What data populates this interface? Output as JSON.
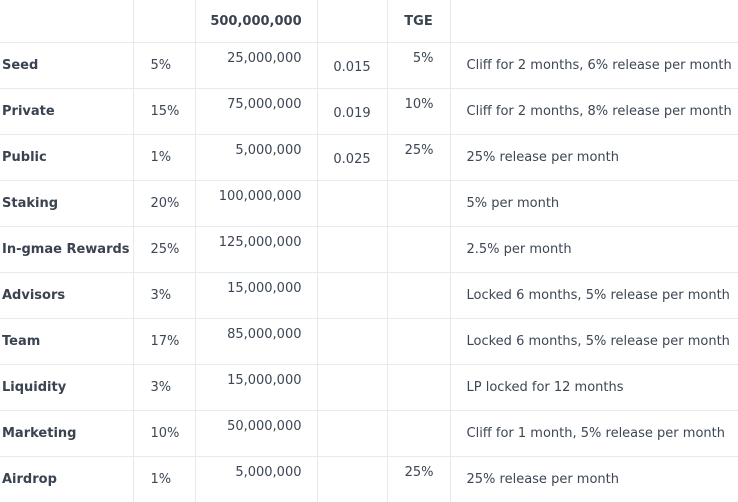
{
  "header": {
    "total_supply": "500,000,000",
    "tge_label": "TGE"
  },
  "rows": [
    {
      "name": "Seed",
      "percent": "5%",
      "amount": "25,000,000",
      "price": "0.015",
      "tge": "5%",
      "vesting": "Cliff for 2 months, 6% release per month"
    },
    {
      "name": "Private",
      "percent": "15%",
      "amount": "75,000,000",
      "price": "0.019",
      "tge": "10%",
      "vesting": "Cliff for 2 months, 8% release per month"
    },
    {
      "name": "Public",
      "percent": "1%",
      "amount": "5,000,000",
      "price": "0.025",
      "tge": "25%",
      "vesting": "25% release per month"
    },
    {
      "name": "Staking",
      "percent": "20%",
      "amount": "100,000,000",
      "price": "",
      "tge": "",
      "vesting": "5% per month"
    },
    {
      "name": "In-gmae Rewards",
      "percent": "25%",
      "amount": "125,000,000",
      "price": "",
      "tge": "",
      "vesting": "2.5% per month"
    },
    {
      "name": "Advisors",
      "percent": "3%",
      "amount": "15,000,000",
      "price": "",
      "tge": "",
      "vesting": "Locked 6 months, 5% release per month"
    },
    {
      "name": "Team",
      "percent": "17%",
      "amount": "85,000,000",
      "price": "",
      "tge": "",
      "vesting": "Locked 6 months, 5% release per month"
    },
    {
      "name": "Liquidity",
      "percent": "3%",
      "amount": "15,000,000",
      "price": "",
      "tge": "",
      "vesting": "LP locked for 12 months"
    },
    {
      "name": "Marketing",
      "percent": "10%",
      "amount": "50,000,000",
      "price": "",
      "tge": "",
      "vesting": "Cliff for 1 month, 5% release per month"
    },
    {
      "name": "Airdrop",
      "percent": "1%",
      "amount": "5,000,000",
      "price": "",
      "tge": "25%",
      "vesting": "25% release per month"
    }
  ]
}
